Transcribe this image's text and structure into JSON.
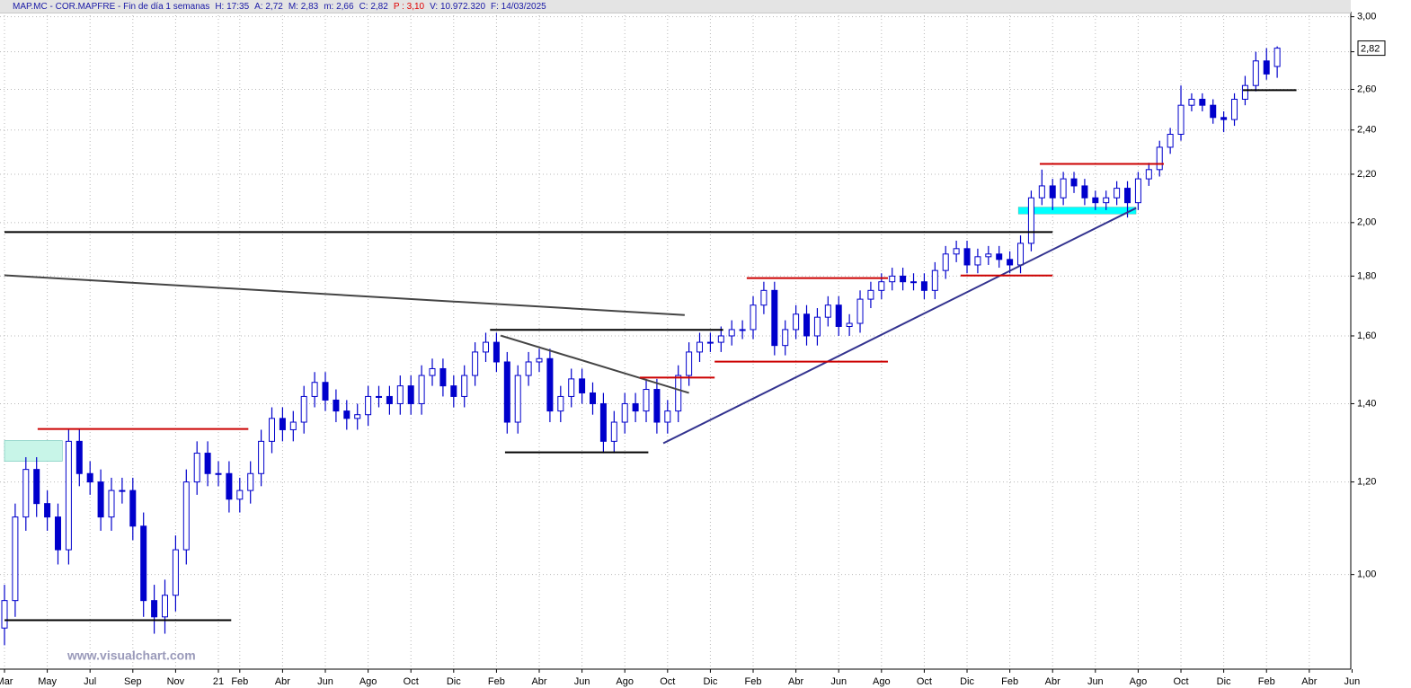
{
  "chart_data": {
    "type": "candlestick",
    "header": [
      "MAP.MC - COR.MAPFRE - Fin de día 1 semanas",
      "H: 17:35",
      "A: 2,72",
      "M: 2,83",
      "m: 2,66",
      "C: 2,82",
      "P : 3,10",
      "V: 10.972.320",
      "F: 14/03/2025"
    ],
    "header_colors": [
      "#1a1aa6",
      "#1a1aa6",
      "#1a1aa6",
      "#1a1aa6",
      "#1a1aa6",
      "#1a1aa6",
      "#e00000",
      "#1a1aa6",
      "#1a1aa6"
    ],
    "watermark": "www.visualchart.com",
    "last_price_label": "2,82",
    "log_scale": true,
    "grid": true,
    "up_color": "#ffffff",
    "down_color": "#0000cc",
    "outline_color": "#0000cc",
    "xlim": [
      1.79,
      64.94
    ],
    "ylim": [
      0.83,
      3.03
    ],
    "yticks": [
      {
        "value": 1,
        "label": "1,00"
      },
      {
        "value": 1.2,
        "label": "1,20"
      },
      {
        "value": 1.4,
        "label": "1,40"
      },
      {
        "value": 1.6,
        "label": "1,60"
      },
      {
        "value": 1.8,
        "label": "1,80"
      },
      {
        "value": 2,
        "label": "2,00"
      },
      {
        "value": 2.2,
        "label": "2,20"
      },
      {
        "value": 2.4,
        "label": "2,40"
      },
      {
        "value": 2.6,
        "label": "2,60"
      },
      {
        "value": 2.8,
        "label": "2,80"
      },
      {
        "value": 3,
        "label": "3,00"
      }
    ],
    "xticks": [
      {
        "value": 2,
        "label": "Mar"
      },
      {
        "value": 4,
        "label": "May"
      },
      {
        "value": 6,
        "label": "Jul"
      },
      {
        "value": 8,
        "label": "Sep"
      },
      {
        "value": 10,
        "label": "Nov"
      },
      {
        "value": 12,
        "label": "21"
      },
      {
        "value": 13,
        "label": "Feb"
      },
      {
        "value": 15,
        "label": "Abr"
      },
      {
        "value": 17,
        "label": "Jun"
      },
      {
        "value": 19,
        "label": "Ago"
      },
      {
        "value": 21,
        "label": "Oct"
      },
      {
        "value": 23,
        "label": "Dic"
      },
      {
        "value": 25,
        "label": "Feb"
      },
      {
        "value": 27,
        "label": "Abr"
      },
      {
        "value": 29,
        "label": "Jun"
      },
      {
        "value": 31,
        "label": "Ago"
      },
      {
        "value": 33,
        "label": "Oct"
      },
      {
        "value": 35,
        "label": "Dic"
      },
      {
        "value": 37,
        "label": "Feb"
      },
      {
        "value": 39,
        "label": "Abr"
      },
      {
        "value": 41,
        "label": "Jun"
      },
      {
        "value": 43,
        "label": "Ago"
      },
      {
        "value": 45,
        "label": "Oct"
      },
      {
        "value": 47,
        "label": "Dic"
      },
      {
        "value": 49,
        "label": "Feb"
      },
      {
        "value": 51,
        "label": "Abr"
      },
      {
        "value": 53,
        "label": "Jun"
      },
      {
        "value": 55,
        "label": "Ago"
      },
      {
        "value": 57,
        "label": "Oct"
      },
      {
        "value": 59,
        "label": "Dic"
      },
      {
        "value": 61,
        "label": "Feb"
      },
      {
        "value": 63,
        "label": "Abr"
      },
      {
        "value": 65,
        "label": "Jun"
      }
    ],
    "x": [
      2,
      2.5,
      3,
      3.5,
      4,
      4.5,
      5,
      5.5,
      6,
      6.5,
      7,
      7.5,
      8,
      8.5,
      9,
      9.5,
      10,
      10.5,
      11,
      11.5,
      12,
      12.5,
      13,
      13.5,
      14,
      14.5,
      15,
      15.5,
      16,
      16.5,
      17,
      17.5,
      18,
      18.5,
      19,
      19.5,
      20,
      20.5,
      21,
      21.5,
      22,
      22.5,
      23,
      23.5,
      24,
      24.5,
      25,
      25.5,
      26,
      26.5,
      27,
      27.5,
      28,
      28.5,
      29,
      29.5,
      30,
      30.5,
      31,
      31.5,
      32,
      32.5,
      33,
      33.5,
      34,
      34.5,
      35,
      35.5,
      36,
      36.5,
      37,
      37.5,
      38,
      38.5,
      39,
      39.5,
      40,
      40.5,
      41,
      41.5,
      42,
      42.5,
      43,
      43.5,
      44,
      44.5,
      45,
      45.5,
      46,
      46.5,
      47,
      47.5,
      48,
      48.5,
      49,
      49.5,
      50,
      50.5,
      51,
      51.5,
      52,
      52.5,
      53,
      53.5,
      54,
      54.5,
      55,
      55.5,
      56,
      56.5,
      57,
      57.5,
      58,
      58.5,
      59,
      59.5,
      60,
      60.5,
      61,
      61.5
    ],
    "open": [
      0.9,
      0.95,
      1.12,
      1.23,
      1.15,
      1.12,
      1.05,
      1.3,
      1.22,
      1.2,
      1.12,
      1.18,
      1.18,
      1.1,
      0.95,
      0.92,
      0.96,
      1.05,
      1.2,
      1.27,
      1.22,
      1.22,
      1.16,
      1.18,
      1.22,
      1.3,
      1.36,
      1.33,
      1.35,
      1.42,
      1.46,
      1.41,
      1.38,
      1.36,
      1.37,
      1.42,
      1.42,
      1.4,
      1.45,
      1.4,
      1.48,
      1.5,
      1.45,
      1.42,
      1.48,
      1.55,
      1.58,
      1.52,
      1.35,
      1.48,
      1.52,
      1.53,
      1.38,
      1.42,
      1.47,
      1.43,
      1.4,
      1.3,
      1.35,
      1.4,
      1.38,
      1.44,
      1.35,
      1.38,
      1.48,
      1.55,
      1.58,
      1.58,
      1.6,
      1.62,
      1.62,
      1.7,
      1.75,
      1.57,
      1.62,
      1.67,
      1.6,
      1.66,
      1.7,
      1.63,
      1.64,
      1.72,
      1.75,
      1.78,
      1.8,
      1.78,
      1.78,
      1.75,
      1.82,
      1.88,
      1.9,
      1.84,
      1.87,
      1.88,
      1.86,
      1.84,
      1.92,
      2.1,
      2.15,
      2.1,
      2.18,
      2.15,
      2.1,
      2.08,
      2.1,
      2.14,
      2.08,
      2.18,
      2.22,
      2.32,
      2.38,
      2.52,
      2.55,
      2.52,
      2.46,
      2.45,
      2.55,
      2.62,
      2.75,
      2.72
    ],
    "high": [
      0.98,
      1.15,
      1.26,
      1.26,
      1.18,
      1.15,
      1.33,
      1.33,
      1.25,
      1.23,
      1.21,
      1.21,
      1.21,
      1.13,
      0.98,
      0.99,
      1.08,
      1.23,
      1.3,
      1.3,
      1.25,
      1.25,
      1.21,
      1.25,
      1.33,
      1.39,
      1.39,
      1.38,
      1.45,
      1.49,
      1.49,
      1.44,
      1.41,
      1.4,
      1.45,
      1.45,
      1.45,
      1.48,
      1.48,
      1.51,
      1.53,
      1.53,
      1.48,
      1.51,
      1.58,
      1.61,
      1.61,
      1.55,
      1.51,
      1.55,
      1.56,
      1.56,
      1.45,
      1.5,
      1.5,
      1.46,
      1.43,
      1.38,
      1.43,
      1.43,
      1.47,
      1.47,
      1.41,
      1.51,
      1.58,
      1.61,
      1.61,
      1.63,
      1.65,
      1.65,
      1.73,
      1.78,
      1.78,
      1.65,
      1.7,
      1.7,
      1.69,
      1.73,
      1.73,
      1.67,
      1.75,
      1.78,
      1.81,
      1.83,
      1.83,
      1.81,
      1.81,
      1.85,
      1.91,
      1.93,
      1.93,
      1.9,
      1.91,
      1.91,
      1.89,
      1.95,
      2.13,
      2.22,
      2.18,
      2.21,
      2.21,
      2.18,
      2.13,
      2.13,
      2.17,
      2.17,
      2.21,
      2.25,
      2.35,
      2.41,
      2.62,
      2.58,
      2.58,
      2.55,
      2.49,
      2.58,
      2.67,
      2.8,
      2.82,
      2.83
    ],
    "low": [
      0.87,
      0.92,
      1.09,
      1.12,
      1.09,
      1.02,
      1.02,
      1.19,
      1.17,
      1.09,
      1.09,
      1.15,
      1.07,
      0.92,
      0.89,
      0.89,
      0.93,
      1.02,
      1.17,
      1.19,
      1.19,
      1.13,
      1.13,
      1.15,
      1.19,
      1.27,
      1.3,
      1.3,
      1.32,
      1.39,
      1.38,
      1.35,
      1.33,
      1.33,
      1.34,
      1.39,
      1.37,
      1.37,
      1.37,
      1.37,
      1.45,
      1.42,
      1.39,
      1.39,
      1.45,
      1.52,
      1.49,
      1.32,
      1.32,
      1.45,
      1.49,
      1.35,
      1.35,
      1.39,
      1.4,
      1.37,
      1.27,
      1.27,
      1.32,
      1.35,
      1.35,
      1.32,
      1.32,
      1.35,
      1.45,
      1.52,
      1.55,
      1.55,
      1.57,
      1.59,
      1.59,
      1.67,
      1.54,
      1.54,
      1.59,
      1.57,
      1.57,
      1.63,
      1.6,
      1.6,
      1.61,
      1.69,
      1.72,
      1.75,
      1.75,
      1.75,
      1.72,
      1.72,
      1.79,
      1.85,
      1.81,
      1.81,
      1.84,
      1.83,
      1.81,
      1.81,
      1.89,
      2.07,
      2.05,
      2.07,
      2.12,
      2.07,
      2.05,
      2.05,
      2.07,
      2.02,
      2.05,
      2.15,
      2.19,
      2.29,
      2.35,
      2.49,
      2.49,
      2.43,
      2.39,
      2.42,
      2.52,
      2.59,
      2.65,
      2.66
    ],
    "close": [
      0.95,
      1.12,
      1.23,
      1.15,
      1.12,
      1.05,
      1.3,
      1.22,
      1.2,
      1.12,
      1.18,
      1.18,
      1.1,
      0.95,
      0.92,
      0.96,
      1.05,
      1.2,
      1.27,
      1.22,
      1.22,
      1.16,
      1.18,
      1.22,
      1.3,
      1.36,
      1.33,
      1.35,
      1.42,
      1.46,
      1.41,
      1.38,
      1.36,
      1.37,
      1.42,
      1.42,
      1.4,
      1.45,
      1.4,
      1.48,
      1.5,
      1.45,
      1.42,
      1.48,
      1.55,
      1.58,
      1.52,
      1.35,
      1.48,
      1.52,
      1.53,
      1.38,
      1.42,
      1.47,
      1.43,
      1.4,
      1.3,
      1.35,
      1.4,
      1.38,
      1.44,
      1.35,
      1.38,
      1.48,
      1.55,
      1.58,
      1.58,
      1.6,
      1.62,
      1.62,
      1.7,
      1.75,
      1.57,
      1.62,
      1.67,
      1.6,
      1.66,
      1.7,
      1.63,
      1.64,
      1.72,
      1.75,
      1.78,
      1.8,
      1.78,
      1.78,
      1.75,
      1.82,
      1.88,
      1.9,
      1.84,
      1.87,
      1.88,
      1.86,
      1.84,
      1.92,
      2.1,
      2.15,
      2.1,
      2.18,
      2.15,
      2.1,
      2.08,
      2.1,
      2.14,
      2.08,
      2.18,
      2.22,
      2.32,
      2.38,
      2.52,
      2.55,
      2.52,
      2.46,
      2.45,
      2.55,
      2.62,
      2.75,
      2.68,
      2.82
    ],
    "boxes": [
      {
        "x": [
          2.0,
          4.7
        ],
        "y": [
          1.25,
          1.302
        ],
        "color": "#c8f5e8"
      },
      {
        "x": [
          49.4,
          54.9
        ],
        "y": [
          2.034,
          2.062
        ],
        "color": "#00ffff"
      }
    ],
    "drawings": [
      {
        "x": [
          3.55,
          13.4
        ],
        "y": [
          1.332,
          1.332
        ],
        "color": "#cc0000"
      },
      {
        "x": [
          2.0,
          12.6
        ],
        "y": [
          0.914,
          0.914
        ],
        "color": "#000000"
      },
      {
        "x": [
          2.0,
          51.0
        ],
        "y": [
          1.963,
          1.963
        ],
        "color": "#000000"
      },
      {
        "x": [
          2.0,
          33.8
        ],
        "y": [
          1.803,
          1.667
        ],
        "color": "#444444"
      },
      {
        "x": [
          24.7,
          35.6
        ],
        "y": [
          1.619,
          1.619
        ],
        "color": "#000000"
      },
      {
        "x": [
          25.4,
          32.1
        ],
        "y": [
          1.272,
          1.272
        ],
        "color": "#000000"
      },
      {
        "x": [
          25.2,
          34.0
        ],
        "y": [
          1.601,
          1.43
        ],
        "color": "#444444"
      },
      {
        "x": [
          31.7,
          35.2
        ],
        "y": [
          1.474,
          1.474
        ],
        "color": "#cc0000"
      },
      {
        "x": [
          32.8,
          54.9
        ],
        "y": [
          1.295,
          2.058
        ],
        "color": "#33338f"
      },
      {
        "x": [
          35.2,
          43.3
        ],
        "y": [
          1.521,
          1.521
        ],
        "color": "#cc0000"
      },
      {
        "x": [
          36.7,
          43.3
        ],
        "y": [
          1.793,
          1.793
        ],
        "color": "#cc0000"
      },
      {
        "x": [
          46.7,
          51.0
        ],
        "y": [
          1.802,
          1.802
        ],
        "color": "#cc0000"
      },
      {
        "x": [
          50.4,
          56.2
        ],
        "y": [
          2.245,
          2.245
        ],
        "color": "#cc0000"
      },
      {
        "x": [
          59.9,
          62.4
        ],
        "y": [
          2.596,
          2.596
        ],
        "color": "#000000"
      }
    ]
  }
}
